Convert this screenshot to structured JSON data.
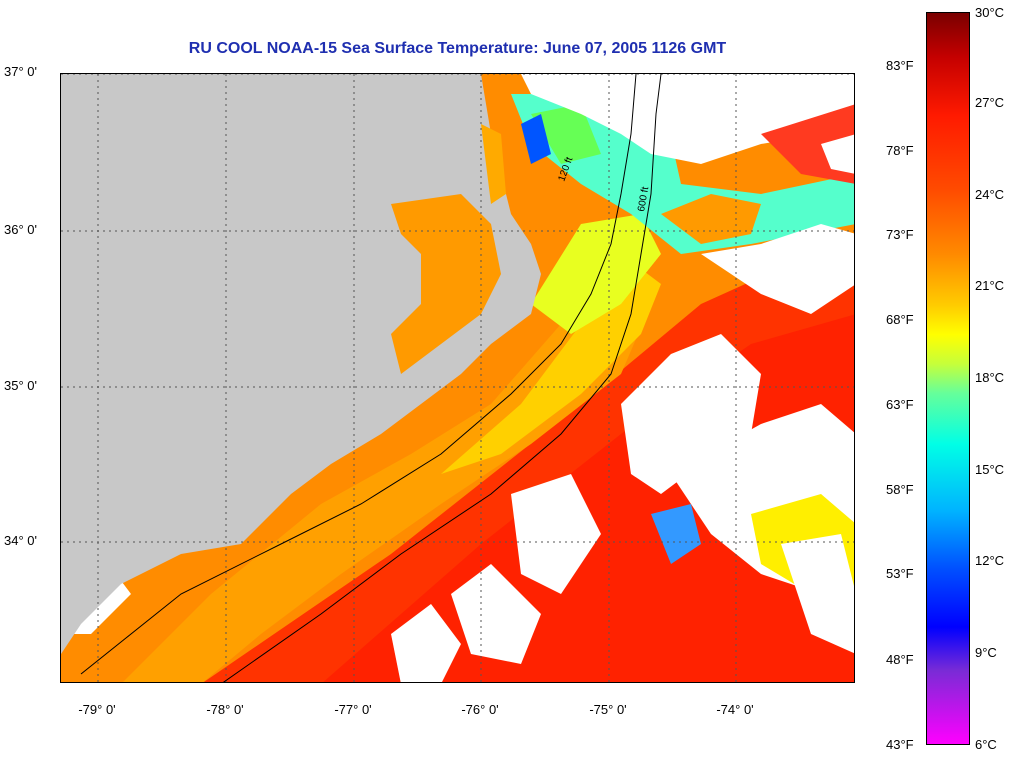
{
  "title": "RU COOL  NOAA-15  Sea Surface Temperature:  June 07, 2005 1126 GMT",
  "map": {
    "latitude_labels": [
      "37° 0'",
      "36° 0'",
      "35° 0'",
      "34° 0'"
    ],
    "longitude_labels": [
      "-79° 0'",
      "-78° 0'",
      "-77° 0'",
      "-76° 0'",
      "-75° 0'",
      "-74° 0'"
    ],
    "contour_labels": [
      "120 ft",
      "600 ft"
    ],
    "colors": {
      "land": "#c8c8c8",
      "cloud": "#ffffff",
      "warm_water": "#ff8a00",
      "gulf_stream": "#ff2a00",
      "cool_water": "#33ffcc"
    }
  },
  "colorbar": {
    "fahrenheit_labels": [
      "83°F",
      "78°F",
      "73°F",
      "68°F",
      "63°F",
      "58°F",
      "53°F",
      "48°F",
      "43°F"
    ],
    "celsius_labels": [
      "30°C",
      "27°C",
      "24°C",
      "21°C",
      "18°C",
      "15°C",
      "12°C",
      "9°C",
      "6°C"
    ]
  }
}
